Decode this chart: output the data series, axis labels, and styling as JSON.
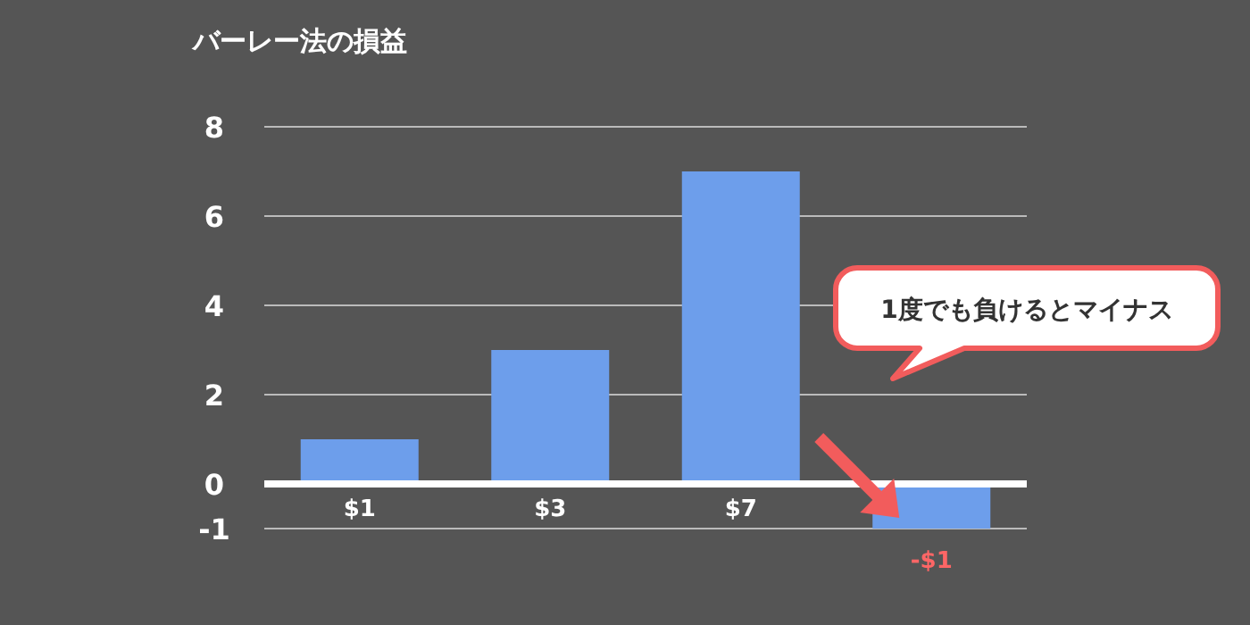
{
  "chart_data": {
    "type": "bar",
    "title": "バーレー法の損益",
    "categories": [
      "$1",
      "$3",
      "$7",
      "-$1"
    ],
    "values": [
      1,
      3,
      7,
      -1
    ],
    "color": "#6d9eeb",
    "ylim": [
      -1,
      8
    ],
    "yticks": [
      -1,
      0,
      2,
      4,
      6,
      8
    ],
    "grid": "y",
    "annotations": [
      "1度でも負けるとマイナス"
    ]
  }
}
